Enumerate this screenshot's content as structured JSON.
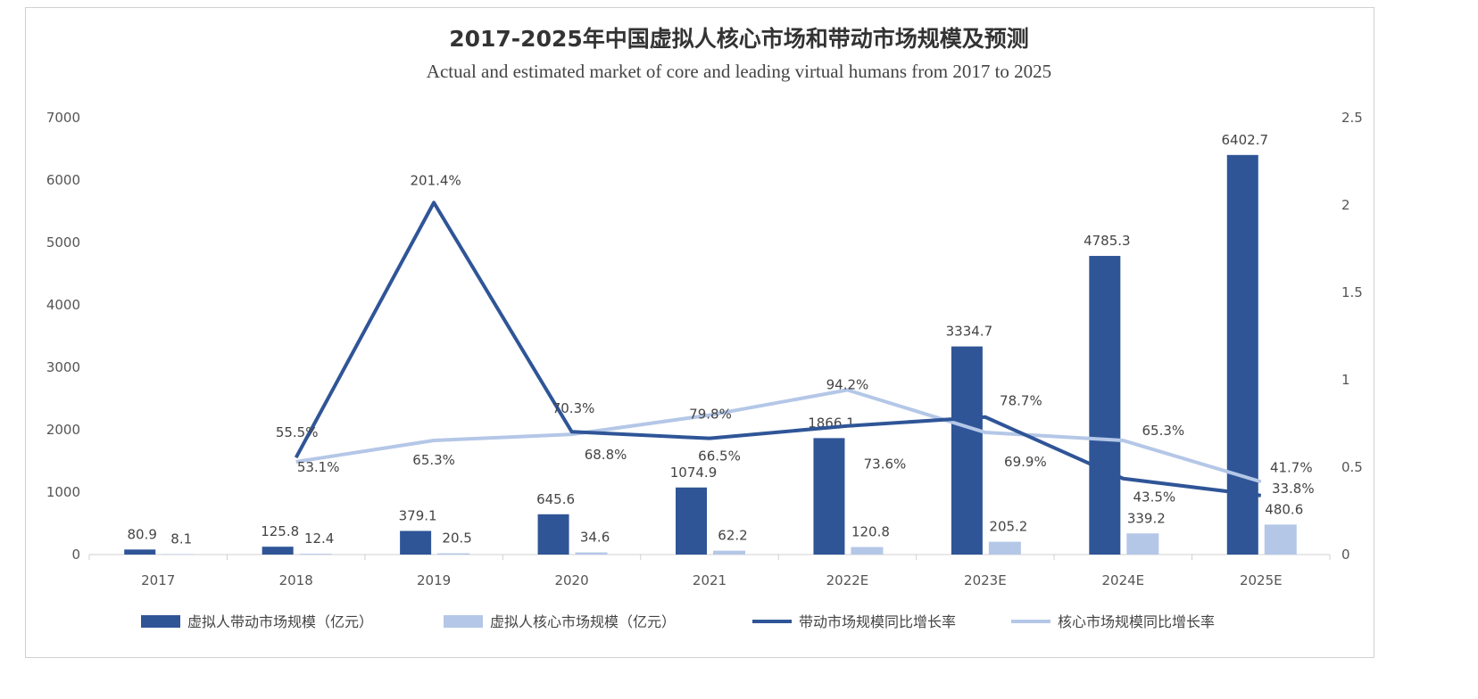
{
  "chart_data": {
    "type": "bar",
    "title": "2017-2025年中国虚拟人核心市场和带动市场规模及预测",
    "subtitle": "Actual and estimated market of core and leading virtual humans from 2017 to 2025",
    "categories": [
      "2017",
      "2018",
      "2019",
      "2020",
      "2021",
      "2022E",
      "2023E",
      "2024E",
      "2025E"
    ],
    "series": [
      {
        "name": "虚拟人带动市场规模（亿元）",
        "type": "bar",
        "axis": "left",
        "color": "#2f5597",
        "values": [
          80.9,
          125.8,
          379.1,
          645.6,
          1074.9,
          1866.1,
          3334.7,
          4785.3,
          6402.7
        ],
        "labels": [
          "80.9",
          "125.8",
          "379.1",
          "645.6",
          "1074.9",
          "1866.1",
          "3334.7",
          "4785.3",
          "6402.7"
        ]
      },
      {
        "name": "虚拟人核心市场规模（亿元）",
        "type": "bar",
        "axis": "left",
        "color": "#b4c7e7",
        "values": [
          8.1,
          12.4,
          20.5,
          34.6,
          62.2,
          120.8,
          205.2,
          339.2,
          480.6
        ],
        "labels": [
          "8.1",
          "12.4",
          "20.5",
          "34.6",
          "62.2",
          "120.8",
          "205.2",
          "339.2",
          "480.6"
        ]
      },
      {
        "name": "带动市场规模同比增长率",
        "type": "line",
        "axis": "right",
        "color": "#2f5597",
        "values": [
          null,
          0.555,
          2.014,
          0.703,
          0.665,
          0.736,
          0.787,
          0.435,
          0.338
        ],
        "labels": [
          "",
          "55.5%",
          "201.4%",
          "70.3%",
          "66.5%",
          "73.6%",
          "78.7%",
          "43.5%",
          "33.8%"
        ]
      },
      {
        "name": "核心市场规模同比增长率",
        "type": "line",
        "axis": "right",
        "color": "#b4c7e7",
        "values": [
          null,
          0.531,
          0.653,
          0.688,
          0.798,
          0.942,
          0.699,
          0.653,
          0.417
        ],
        "labels": [
          "",
          "53.1%",
          "65.3%",
          "68.8%",
          "79.8%",
          "94.2%",
          "69.9%",
          "65.3%",
          "41.7%"
        ]
      }
    ],
    "y_left": {
      "range": [
        0,
        7000
      ],
      "ticks": [
        "0",
        "1000",
        "2000",
        "3000",
        "4000",
        "5000",
        "6000",
        "7000"
      ]
    },
    "y_right": {
      "range": [
        0,
        2.5
      ],
      "ticks": [
        "0",
        "0.5",
        "1",
        "1.5",
        "2",
        "2.5"
      ]
    },
    "grid": false,
    "legend": "bottom"
  }
}
